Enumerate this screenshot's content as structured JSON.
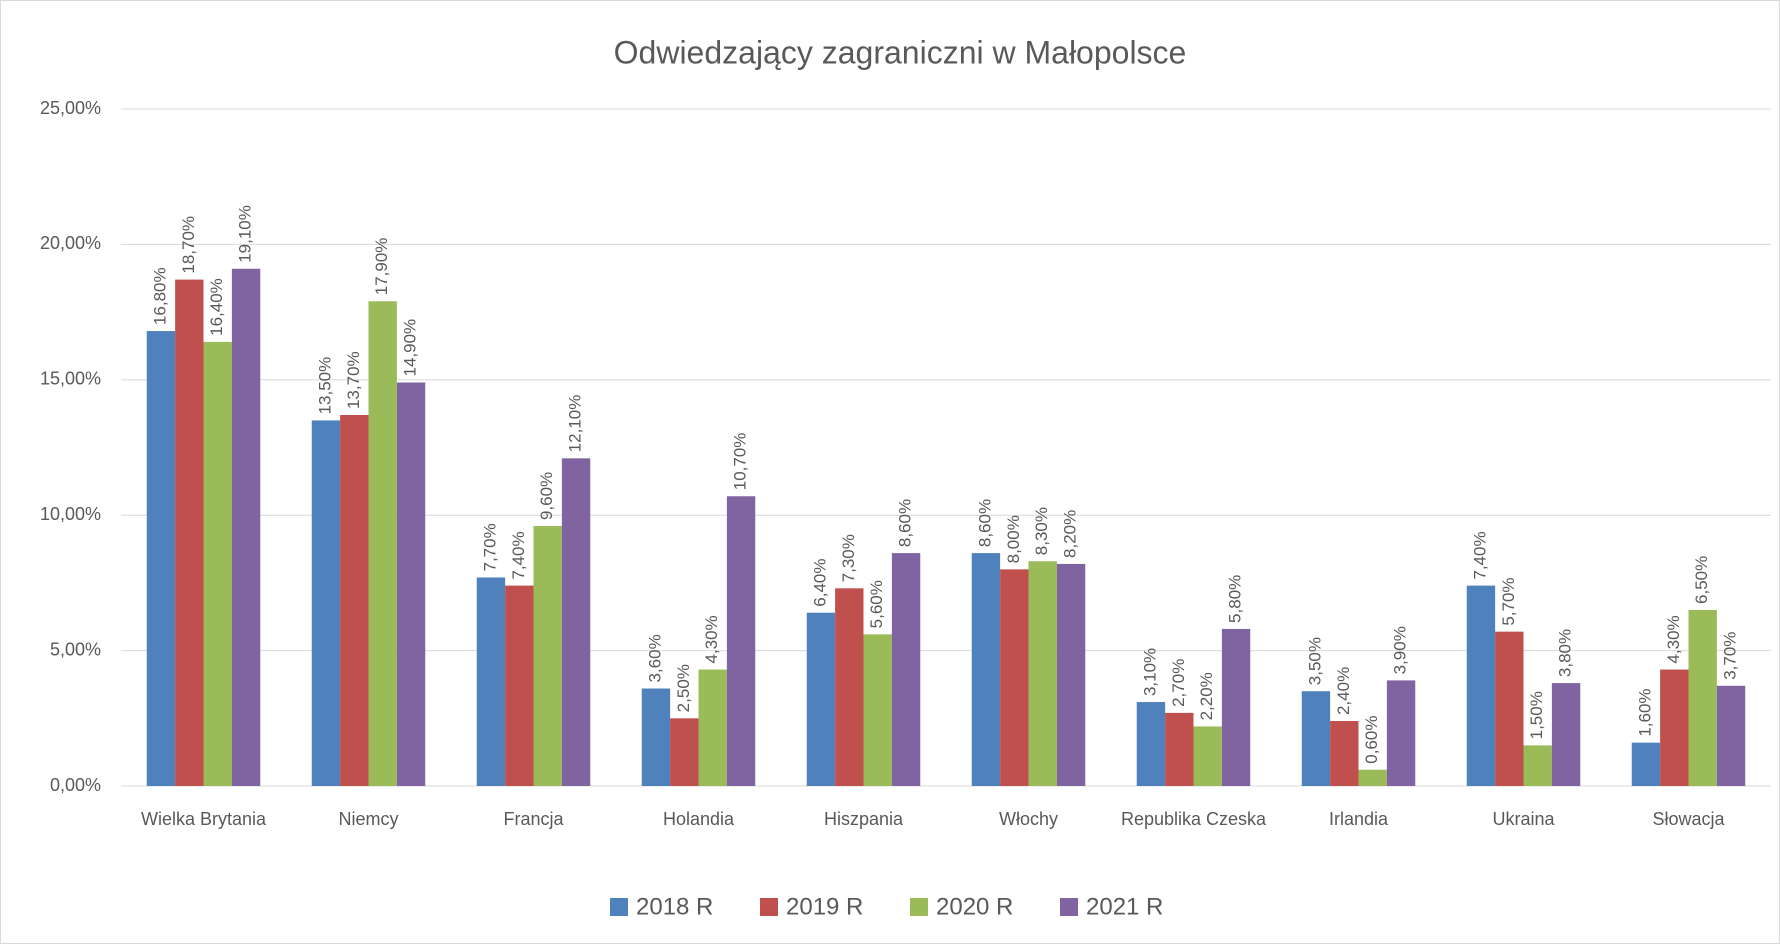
{
  "chart_data": {
    "type": "bar",
    "title": "Odwiedzający zagraniczni w Małopolsce",
    "categories": [
      "Wielka Brytania",
      "Niemcy",
      "Francja",
      "Holandia",
      "Hiszpania",
      "Włochy",
      "Republika Czeska",
      "Irlandia",
      "Ukraina",
      "Słowacja"
    ],
    "series": [
      {
        "name": "2018 R",
        "color": "#4f81bd",
        "values": [
          16.8,
          13.5,
          7.7,
          3.6,
          6.4,
          8.6,
          3.1,
          3.5,
          7.4,
          1.6
        ],
        "value_labels": [
          "16,80%",
          "13,50%",
          "7,70%",
          "3,60%",
          "6,40%",
          "8,60%",
          "3,10%",
          "3,50%",
          "7,40%",
          "1,60%"
        ]
      },
      {
        "name": "2019 R",
        "color": "#c0504d",
        "values": [
          18.7,
          13.7,
          7.4,
          2.5,
          7.3,
          8.0,
          2.7,
          2.4,
          5.7,
          4.3
        ],
        "value_labels": [
          "18,70%",
          "13,70%",
          "7,40%",
          "2,50%",
          "7,30%",
          "8,00%",
          "2,70%",
          "2,40%",
          "5,70%",
          "4,30%"
        ]
      },
      {
        "name": "2020 R",
        "color": "#9bbb59",
        "values": [
          16.4,
          17.9,
          9.6,
          4.3,
          5.6,
          8.3,
          2.2,
          0.6,
          1.5,
          6.5
        ],
        "value_labels": [
          "16,40%",
          "17,90%",
          "9,60%",
          "4,30%",
          "5,60%",
          "8,30%",
          "2,20%",
          "0,60%",
          "1,50%",
          "6,50%"
        ]
      },
      {
        "name": "2021 R",
        "color": "#8064a2",
        "values": [
          19.1,
          14.9,
          12.1,
          10.7,
          8.6,
          8.2,
          5.8,
          3.9,
          3.8,
          3.7
        ],
        "value_labels": [
          "19,10%",
          "14,90%",
          "12,10%",
          "10,70%",
          "8,60%",
          "8,20%",
          "5,80%",
          "3,90%",
          "3,80%",
          "3,70%"
        ]
      }
    ],
    "ylim": [
      0,
      25
    ],
    "yticks": [
      {
        "value": 0,
        "label": "0,00%"
      },
      {
        "value": 5,
        "label": "5,00%"
      },
      {
        "value": 10,
        "label": "10,00%"
      },
      {
        "value": 15,
        "label": "15,00%"
      },
      {
        "value": 20,
        "label": "20,00%"
      },
      {
        "value": 25,
        "label": "25,00%"
      }
    ],
    "grid": true,
    "legend": "bottom"
  }
}
